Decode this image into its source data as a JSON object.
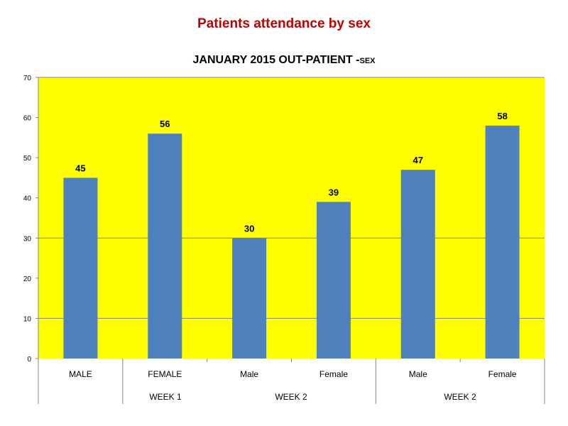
{
  "header": {
    "title": "Patients attendance by sex",
    "title_color": "#c00000"
  },
  "chart_data": {
    "type": "bar",
    "title": "JANUARY 2015 OUT-PATIENT -",
    "title_suffix": "SEX",
    "categories": [
      "MALE",
      "FEMALE",
      "Male",
      "Female",
      "Male",
      "Female"
    ],
    "groups": [
      "WEEK 1",
      "WEEK 2",
      "WEEK 2"
    ],
    "values": [
      45,
      56,
      30,
      39,
      47,
      58
    ],
    "ylim": [
      0,
      70
    ],
    "yticks": [
      "0",
      "10",
      "20",
      "30",
      "40",
      "50",
      "60",
      "70"
    ],
    "gridlines_at": [
      10,
      30
    ],
    "data_labels": true,
    "bar_color": "#4f81bd",
    "plot_background": "#ffff00"
  }
}
